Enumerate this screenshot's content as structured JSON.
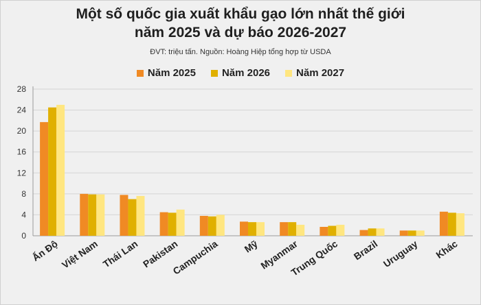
{
  "title_line1": "Một số quốc gia xuất khẩu gạo lớn nhất thế giới",
  "title_line2": "năm 2025 và dự báo 2026-2027",
  "subtitle": "ĐVT: triệu tấn. Nguồn: Hoàng Hiệp tổng hợp từ USDA",
  "chart_data": {
    "type": "bar",
    "title": "Một số quốc gia xuất khẩu gạo lớn nhất thế giới năm 2025 và dự báo 2026-2027",
    "subtitle": "ĐVT: triệu tấn. Nguồn: Hoàng Hiệp tổng hợp từ USDA",
    "categories": [
      "Ấn Độ",
      "Việt Nam",
      "Thái Lan",
      "Pakistan",
      "Campuchia",
      "Mỹ",
      "Myanmar",
      "Trung Quốc",
      "Brazil",
      "Uruguay",
      "Khác"
    ],
    "series": [
      {
        "name": "Năm 2025",
        "color": "#f08a24",
        "values": [
          21.7,
          8.0,
          7.8,
          4.5,
          3.8,
          2.7,
          2.6,
          1.7,
          1.1,
          1.0,
          4.6
        ]
      },
      {
        "name": "Năm 2026",
        "color": "#e0b000",
        "values": [
          24.5,
          7.9,
          7.0,
          4.4,
          3.7,
          2.6,
          2.6,
          1.9,
          1.4,
          1.0,
          4.4
        ]
      },
      {
        "name": "Năm 2027",
        "color": "#ffe680",
        "values": [
          25.0,
          7.9,
          7.6,
          5.0,
          4.0,
          2.6,
          2.1,
          2.1,
          1.4,
          1.0,
          4.3
        ]
      }
    ],
    "ylim": [
      0,
      28
    ],
    "yticks": [
      0,
      4,
      8,
      12,
      16,
      20,
      24,
      28
    ],
    "xlabel": "",
    "ylabel": "",
    "grid": true,
    "legend": "top-center"
  }
}
